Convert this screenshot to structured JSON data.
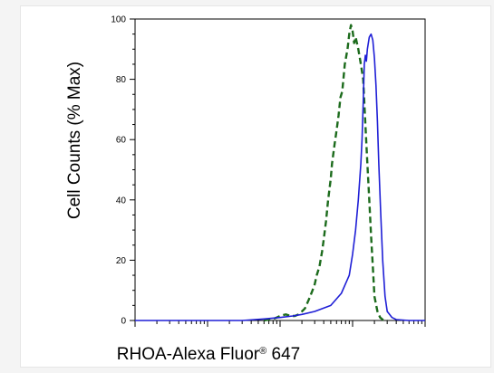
{
  "chart_data": {
    "type": "line",
    "title": "",
    "xlabel": "RHOA-Alexa Fluor",
    "xlabel_sup": "®",
    "xlabel_suffix": " 647",
    "ylabel": "Cell Counts (% Max)",
    "x_scale": "log",
    "xlim": [
      1,
      10000
    ],
    "ylim": [
      0,
      100
    ],
    "yticks": [
      0,
      20,
      40,
      60,
      80,
      100
    ],
    "grid": false,
    "legend": "none",
    "series": [
      {
        "color": "#1c6b1c",
        "style": "dashed",
        "x": [
          60,
          70,
          80,
          90,
          100,
          120,
          140,
          160,
          180,
          200,
          220,
          250,
          280,
          300,
          320,
          350,
          380,
          400,
          430,
          460,
          500,
          520,
          560,
          600,
          640,
          680,
          720,
          780,
          850,
          900,
          950,
          1000,
          1050,
          1100,
          1200,
          1300,
          1400,
          1500,
          1600,
          1700,
          1800,
          1900,
          2000,
          2200,
          2400,
          2600,
          3000
        ],
        "y": [
          0,
          0.3,
          0.5,
          1,
          1.5,
          2,
          1.5,
          1.5,
          2,
          3,
          4,
          7,
          10,
          12,
          15,
          18,
          23,
          27,
          33,
          40,
          47,
          52,
          58,
          63,
          68,
          74,
          76,
          85,
          90,
          95,
          98,
          96,
          92,
          94,
          90,
          85,
          80,
          65,
          52,
          40,
          28,
          18,
          8,
          3,
          1,
          0.3,
          0
        ]
      },
      {
        "color": "#1f1fd6",
        "style": "solid",
        "x": [
          1,
          5,
          10,
          30,
          60,
          100,
          150,
          200,
          300,
          500,
          700,
          900,
          1000,
          1100,
          1200,
          1300,
          1350,
          1400,
          1450,
          1500,
          1550,
          1600,
          1700,
          1800,
          1900,
          2000,
          2100,
          2200,
          2300,
          2450,
          2600,
          2800,
          3000,
          3500,
          4000,
          6000,
          10000
        ],
        "y": [
          0,
          0,
          0,
          0,
          0.5,
          1,
          1.5,
          2,
          3,
          5,
          9,
          15,
          22,
          30,
          40,
          52,
          60,
          72,
          85,
          88,
          86,
          90,
          94,
          95,
          93,
          87,
          78,
          66,
          52,
          35,
          20,
          8,
          3,
          1,
          0.3,
          0,
          0
        ]
      }
    ]
  }
}
